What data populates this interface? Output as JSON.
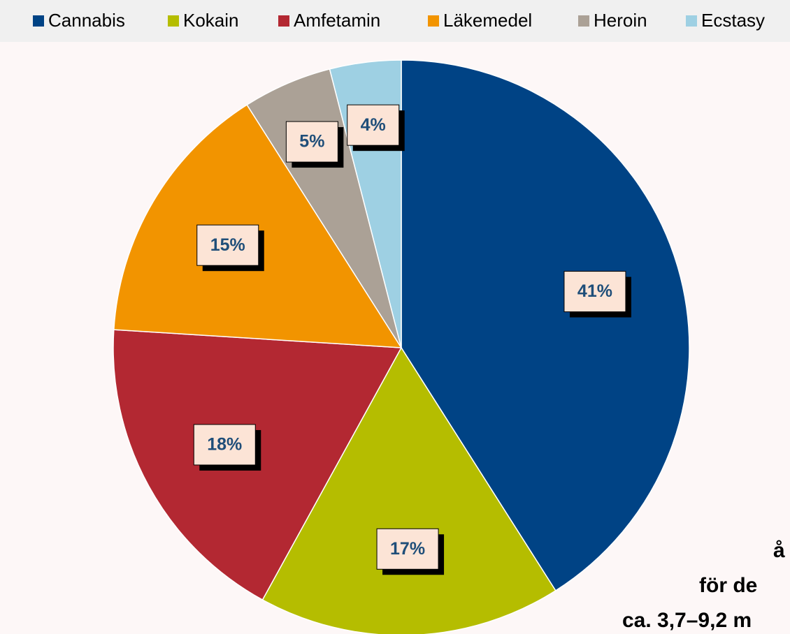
{
  "chart_data": {
    "type": "pie",
    "categories": [
      "Cannabis",
      "Kokain",
      "Amfetamin",
      "Läkemedel",
      "Heroin",
      "Ecstasy"
    ],
    "values": [
      41,
      17,
      18,
      15,
      5,
      4
    ],
    "value_labels": [
      "41%",
      "17%",
      "18%",
      "15%",
      "5%",
      "4%"
    ],
    "colors": [
      "#004385",
      "#b5bd00",
      "#b32832",
      "#f29400",
      "#aba196",
      "#9ed0e3"
    ],
    "legend": "top",
    "annotations": [
      "å",
      "för de",
      "ca. 3,7–9,2 m"
    ]
  }
}
